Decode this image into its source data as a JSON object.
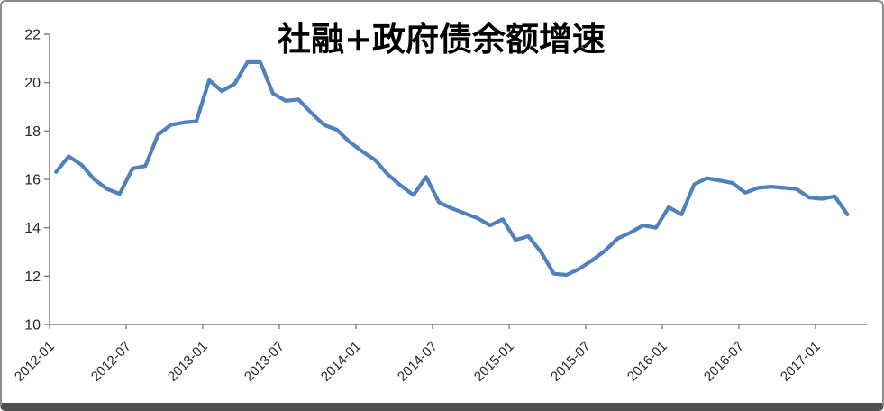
{
  "chart_data": {
    "type": "line",
    "title": "社融+政府债余额增速",
    "series_name": "社融+政府债余额增速",
    "x": [
      "2012-01",
      "2012-02",
      "2012-03",
      "2012-04",
      "2012-05",
      "2012-06",
      "2012-07",
      "2012-08",
      "2012-09",
      "2012-10",
      "2012-11",
      "2012-12",
      "2013-01",
      "2013-02",
      "2013-03",
      "2013-04",
      "2013-05",
      "2013-06",
      "2013-07",
      "2013-08",
      "2013-09",
      "2013-10",
      "2013-11",
      "2013-12",
      "2014-01",
      "2014-02",
      "2014-03",
      "2014-04",
      "2014-05",
      "2014-06",
      "2014-07",
      "2014-08",
      "2014-09",
      "2014-10",
      "2014-11",
      "2014-12",
      "2015-01",
      "2015-02",
      "2015-03",
      "2015-04",
      "2015-05",
      "2015-06",
      "2015-07",
      "2015-08",
      "2015-09",
      "2015-10",
      "2015-11",
      "2015-12",
      "2016-01",
      "2016-02",
      "2016-03",
      "2016-04",
      "2016-05",
      "2016-06",
      "2016-07",
      "2016-08",
      "2016-09",
      "2016-10",
      "2016-11",
      "2016-12",
      "2017-01",
      "2017-02",
      "2017-03"
    ],
    "values": [
      16.3,
      16.95,
      16.6,
      16.0,
      15.6,
      15.4,
      16.45,
      16.55,
      17.85,
      18.25,
      18.35,
      18.4,
      20.1,
      19.65,
      19.95,
      20.85,
      20.85,
      19.55,
      19.25,
      19.3,
      18.75,
      18.25,
      18.05,
      17.55,
      17.15,
      16.8,
      16.2,
      15.75,
      15.35,
      16.1,
      15.05,
      14.8,
      14.6,
      14.4,
      14.1,
      14.35,
      13.5,
      13.65,
      13.0,
      12.1,
      12.05,
      12.3,
      12.65,
      13.05,
      13.55,
      13.8,
      14.1,
      14.0,
      14.85,
      14.55,
      15.8,
      16.05,
      15.95,
      15.85,
      15.45,
      15.65,
      15.7,
      15.65,
      15.6,
      15.25,
      15.2,
      15.3,
      14.55
    ],
    "ylim": [
      10,
      22
    ],
    "yticks": [
      10,
      12,
      14,
      16,
      18,
      20,
      22
    ],
    "xtick_labels": [
      "2012-01",
      "2012-07",
      "2013-01",
      "2013-07",
      "2014-01",
      "2014-07",
      "2015-01",
      "2015-07",
      "2016-01",
      "2016-07",
      "2017-01"
    ],
    "xtick_every": 6,
    "grid": false,
    "legend": "none",
    "line_color": "#4F81BD",
    "axis_color": "#808080",
    "label_color": "#262626",
    "background_color": "#FFFFFF"
  }
}
